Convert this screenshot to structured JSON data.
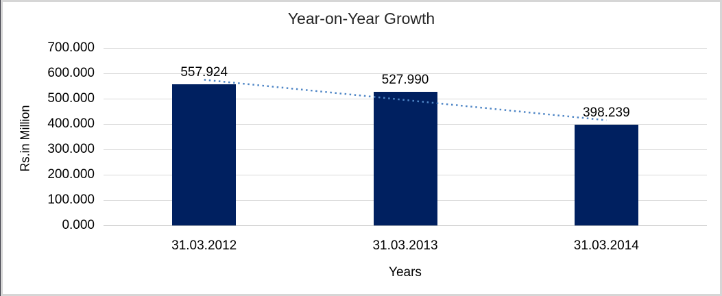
{
  "chart_data": {
    "type": "bar",
    "title": "Year-on-Year Growth",
    "xlabel": "Years",
    "ylabel": "Rs.in Million",
    "categories": [
      "31.03.2012",
      "31.03.2013",
      "31.03.2014"
    ],
    "values": [
      557.924,
      527.99,
      398.239
    ],
    "value_labels": [
      "557.924",
      "527.990",
      "398.239"
    ],
    "series": [
      {
        "name": "Year-on-Year Growth",
        "values": [
          557.924,
          527.99,
          398.239
        ]
      },
      {
        "name": "linear-trendline",
        "style": "dotted"
      }
    ],
    "ytick_labels": [
      "0.000",
      "100.000",
      "200.000",
      "300.000",
      "400.000",
      "500.000",
      "600.000",
      "700.000"
    ],
    "ylim": [
      0,
      700
    ],
    "grid": true,
    "legend_position": "none",
    "colors": {
      "bar": "#002060",
      "trendline": "#4F86C6",
      "gridline": "#D9D9D9",
      "axis_line": "#BFBFBF",
      "title_text": "#262626",
      "label_text": "#000000",
      "frame_border": "#D6D6D6"
    }
  }
}
